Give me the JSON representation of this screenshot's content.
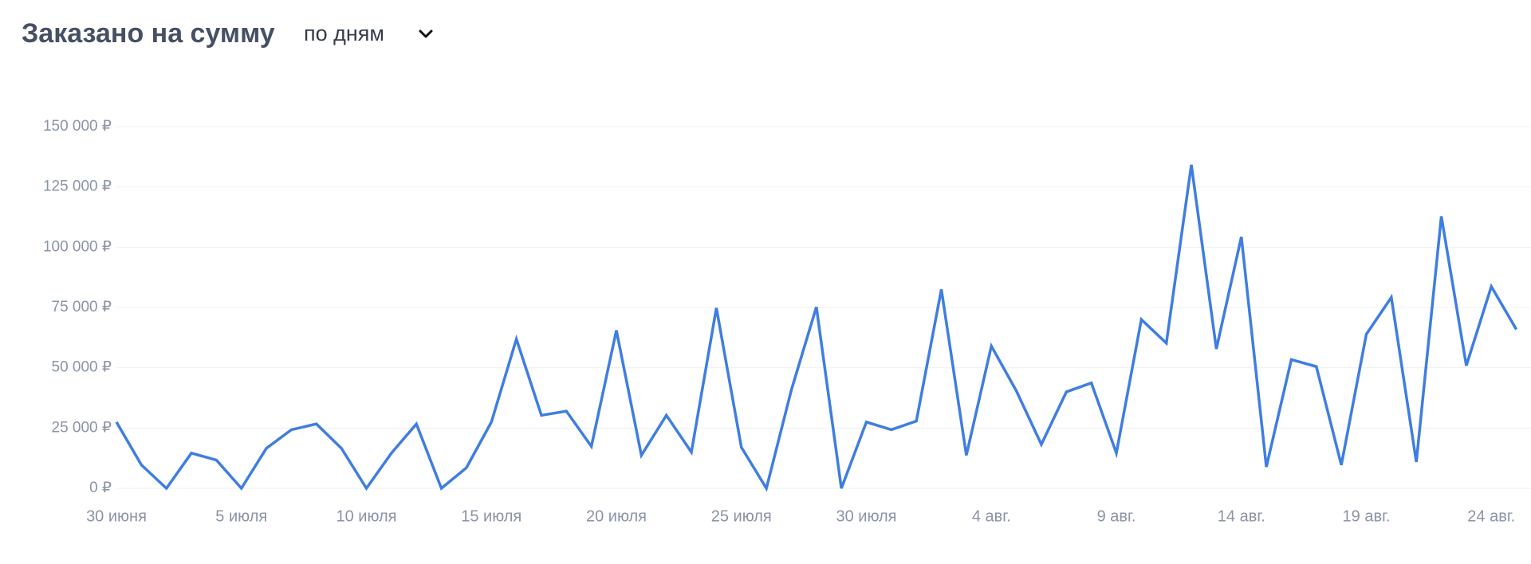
{
  "chart_data": {
    "type": "line",
    "title": "Заказано на сумму",
    "period_selector": "по дням",
    "categories": [
      "30 июня",
      null,
      null,
      null,
      null,
      "5 июля",
      null,
      null,
      null,
      null,
      "10 июля",
      null,
      null,
      null,
      null,
      "15 июля",
      null,
      null,
      null,
      null,
      "20 июля",
      null,
      null,
      null,
      null,
      "25 июля",
      null,
      null,
      null,
      null,
      "30 июля",
      null,
      null,
      null,
      null,
      "4 авг.",
      null,
      null,
      null,
      null,
      "9 авг.",
      null,
      null,
      null,
      null,
      "14 авг.",
      null,
      null,
      null,
      null,
      "19 авг.",
      null,
      null,
      null,
      null,
      "24 авг.",
      null
    ],
    "values": [
      27500,
      9700,
      0,
      14600,
      11700,
      0,
      16600,
      24300,
      26700,
      16600,
      0,
      14600,
      26700,
      0,
      8500,
      27500,
      61900,
      30300,
      32000,
      17400,
      65500,
      13700,
      30300,
      15000,
      74800,
      17000,
      0,
      40800,
      75200,
      0,
      27500,
      24300,
      27900,
      82500,
      13700,
      59000,
      40400,
      18200,
      40000,
      43700,
      14600,
      70000,
      60200,
      134200,
      57800,
      104300,
      8900,
      53400,
      50500,
      9700,
      63900,
      79200,
      10900,
      112800,
      50900,
      83700,
      65900
    ],
    "color": "#3f7ee0",
    "ylim": [
      0,
      150000
    ],
    "yticks": [
      {
        "value": 0,
        "label": "0 ₽"
      },
      {
        "value": 25000,
        "label": "25 000 ₽"
      },
      {
        "value": 50000,
        "label": "50 000 ₽"
      },
      {
        "value": 75000,
        "label": "75 000 ₽"
      },
      {
        "value": 100000,
        "label": "100 000 ₽"
      },
      {
        "value": 125000,
        "label": "125 000 ₽"
      },
      {
        "value": 150000,
        "label": "150 000 ₽"
      }
    ],
    "grid": true
  }
}
